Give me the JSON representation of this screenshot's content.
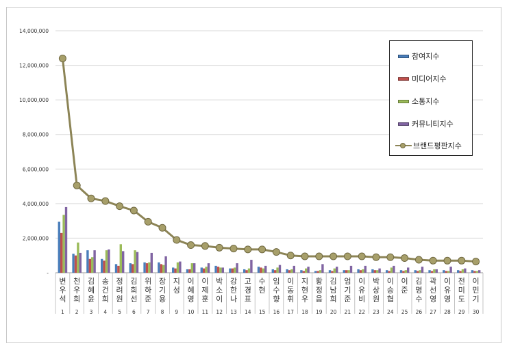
{
  "chart_data": {
    "type": "bar",
    "names": [
      "변우석",
      "천우희",
      "김혜윤",
      "송건희",
      "정려원",
      "김희선",
      "위하준",
      "장기용",
      "지성",
      "이혜영",
      "이제훈",
      "박소이",
      "강한나",
      "고경표",
      "수현",
      "임수향",
      "이동휘",
      "지현우",
      "황정음",
      "김남희",
      "엄기준",
      "이유비",
      "박상원",
      "이승협",
      "이준",
      "김명수",
      "곽선영",
      "이유영",
      "전미도",
      "이민기"
    ],
    "ranks": [
      "1",
      "2",
      "3",
      "4",
      "5",
      "6",
      "7",
      "8",
      "9",
      "10",
      "11",
      "12",
      "13",
      "14",
      "15",
      "16",
      "17",
      "18",
      "19",
      "20",
      "21",
      "22",
      "23",
      "24",
      "25",
      "26",
      "27",
      "28",
      "29",
      "30"
    ],
    "ylim": [
      0,
      14000000
    ],
    "yticks": [
      {
        "value": 0,
        "label": "-"
      },
      {
        "value": 2000000,
        "label": "2,000,000"
      },
      {
        "value": 4000000,
        "label": "4,000,000"
      },
      {
        "value": 6000000,
        "label": "6,000,000"
      },
      {
        "value": 8000000,
        "label": "8,000,000"
      },
      {
        "value": 10000000,
        "label": "10,000,000"
      },
      {
        "value": 12000000,
        "label": "12,000,000"
      },
      {
        "value": 14000000,
        "label": "14,000,000"
      }
    ],
    "grid": true,
    "legend_position": "top-right",
    "series": [
      {
        "name": "참여지수",
        "kind": "bar",
        "color": "#4a7ebb",
        "values": [
          2950000,
          1100000,
          1300000,
          800000,
          500000,
          550000,
          600000,
          600000,
          300000,
          200000,
          300000,
          400000,
          250000,
          200000,
          350000,
          200000,
          200000,
          150000,
          100000,
          150000,
          150000,
          200000,
          200000,
          150000,
          150000,
          150000,
          150000,
          150000,
          150000,
          150000
        ]
      },
      {
        "name": "미디어지수",
        "kind": "bar",
        "color": "#c0504d",
        "values": [
          2300000,
          1000000,
          800000,
          700000,
          400000,
          500000,
          550000,
          500000,
          250000,
          200000,
          250000,
          350000,
          250000,
          150000,
          300000,
          150000,
          150000,
          100000,
          100000,
          100000,
          150000,
          150000,
          150000,
          100000,
          100000,
          100000,
          100000,
          100000,
          100000,
          100000
        ]
      },
      {
        "name": "소통지수",
        "kind": "bar",
        "color": "#9bbb59",
        "values": [
          3350000,
          1750000,
          900000,
          1300000,
          1650000,
          1300000,
          600000,
          450000,
          600000,
          550000,
          350000,
          300000,
          300000,
          250000,
          250000,
          300000,
          200000,
          250000,
          150000,
          250000,
          150000,
          200000,
          150000,
          300000,
          150000,
          150000,
          200000,
          100000,
          200000,
          100000
        ]
      },
      {
        "name": "커뮤니티지수",
        "kind": "bar",
        "color": "#8064a2",
        "values": [
          3800000,
          1150000,
          1300000,
          1350000,
          1250000,
          1200000,
          1150000,
          950000,
          650000,
          550000,
          550000,
          300000,
          550000,
          750000,
          400000,
          450000,
          400000,
          350000,
          500000,
          350000,
          400000,
          400000,
          250000,
          400000,
          300000,
          350000,
          200000,
          350000,
          250000,
          150000
        ]
      },
      {
        "name": "브랜드평판지수",
        "kind": "line",
        "color": "#8c8456",
        "values": [
          12400000,
          5050000,
          4300000,
          4150000,
          3850000,
          3600000,
          2950000,
          2600000,
          1900000,
          1600000,
          1550000,
          1450000,
          1400000,
          1350000,
          1350000,
          1200000,
          1000000,
          950000,
          950000,
          950000,
          950000,
          950000,
          900000,
          900000,
          850000,
          750000,
          700000,
          700000,
          700000,
          650000
        ]
      }
    ]
  }
}
